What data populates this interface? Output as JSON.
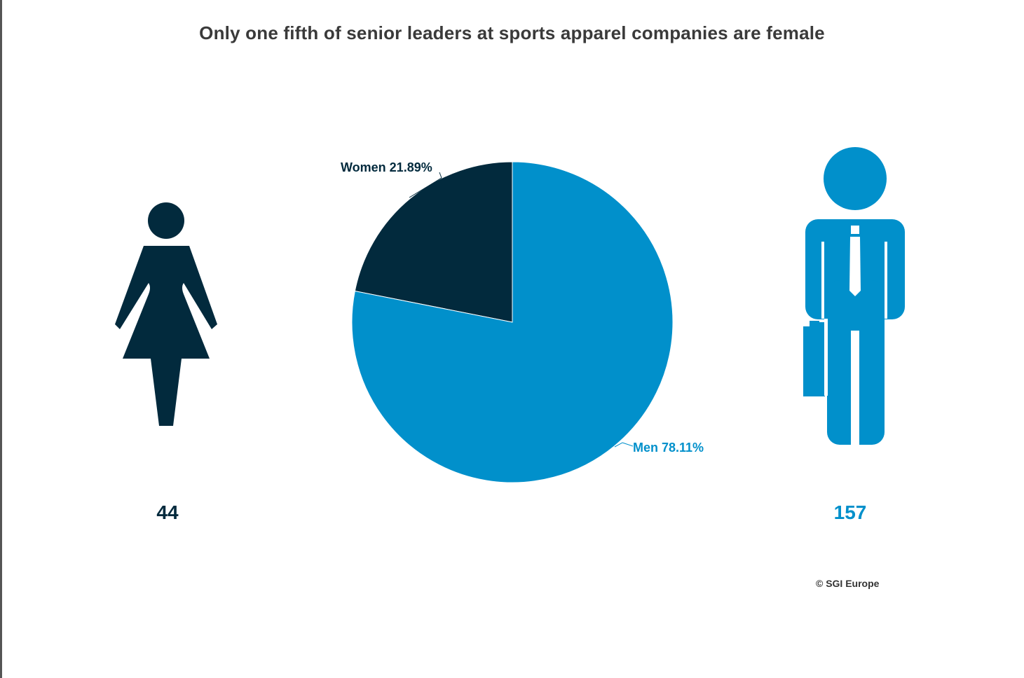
{
  "title": "Only one fifth of senior leaders at sports apparel companies are female",
  "colors": {
    "women": "#022a3d",
    "men": "#0190cb"
  },
  "counts": {
    "women": "44",
    "men": "157"
  },
  "credit": "© SGI Europe",
  "icons": {
    "women": "woman-icon",
    "men": "businessman-icon"
  },
  "chart_data": {
    "type": "pie",
    "title": "Only one fifth of senior leaders at sports apparel companies are female",
    "slices": [
      {
        "name": "Women",
        "value": 21.89,
        "label": "Women 21.89%",
        "count": 44,
        "color": "#022a3d"
      },
      {
        "name": "Men",
        "value": 78.11,
        "label": "Men 78.11%",
        "count": 157,
        "color": "#0190cb"
      }
    ]
  }
}
